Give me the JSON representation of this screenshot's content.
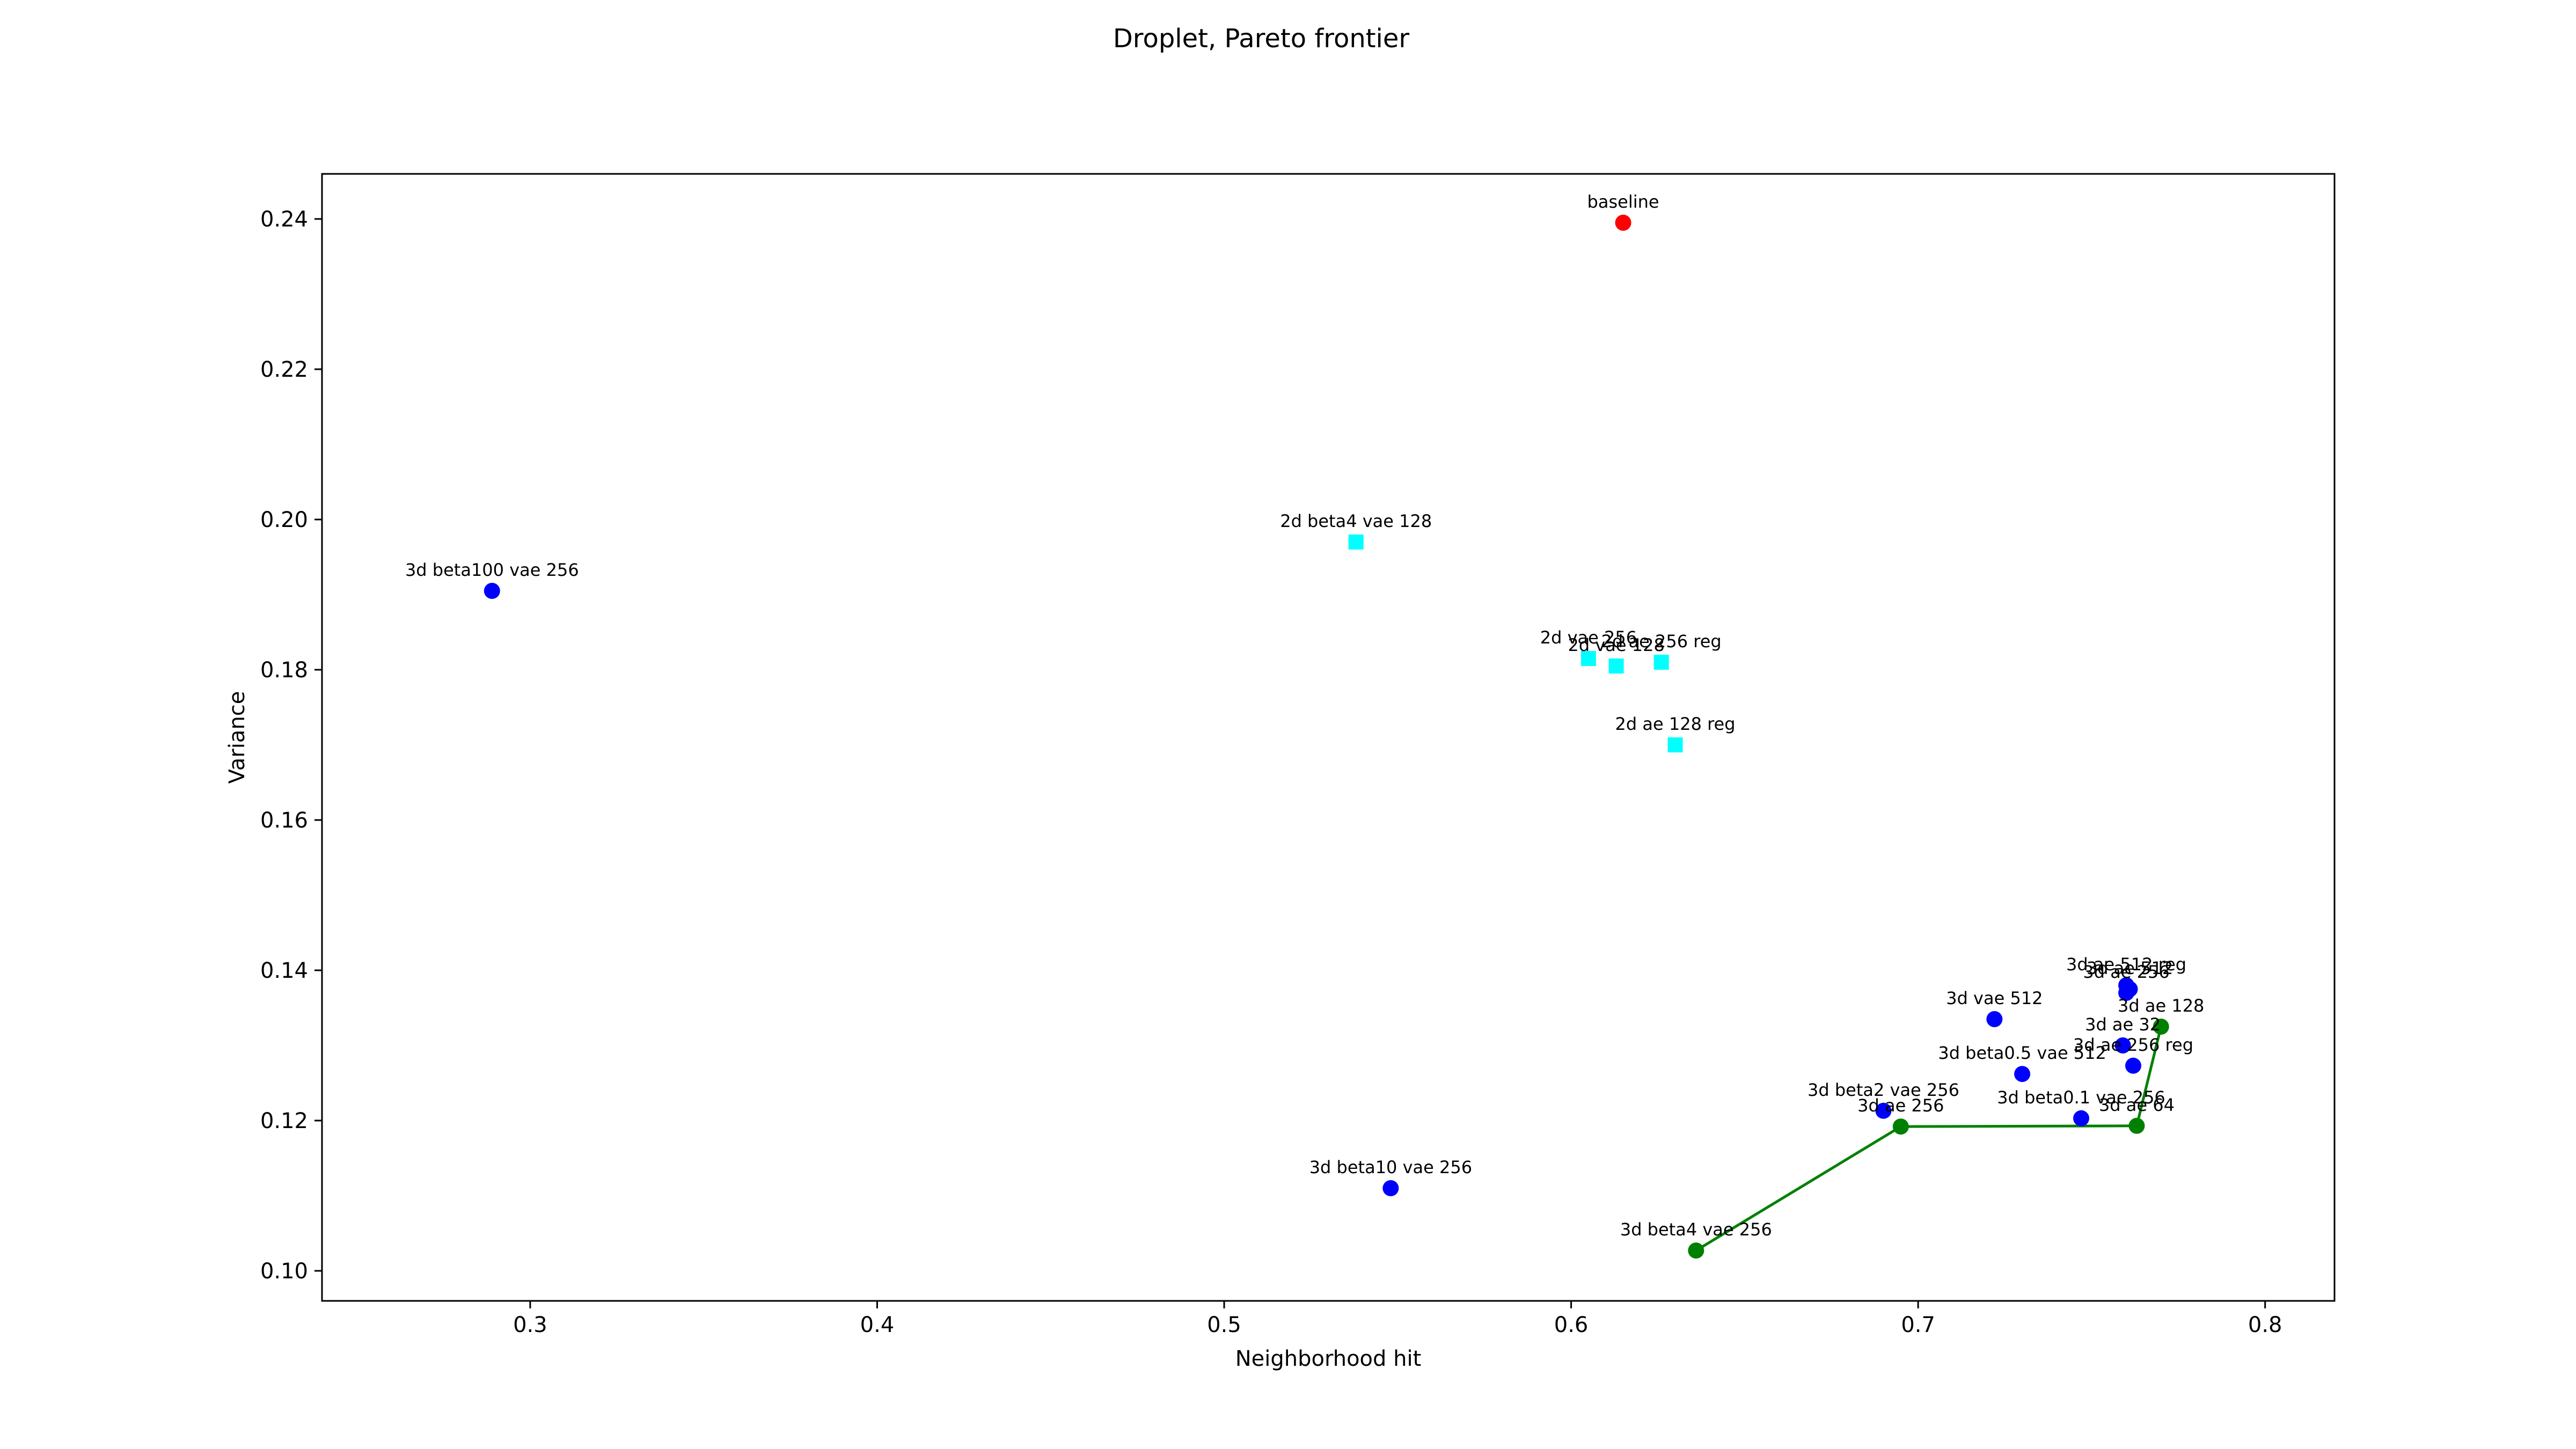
{
  "chart_data": {
    "type": "scatter",
    "title": "Droplet, Pareto frontier",
    "xlabel": "Neighborhood hit",
    "ylabel": "Variance",
    "xlim": [
      0.24,
      0.82
    ],
    "ylim": [
      0.096,
      0.246
    ],
    "x_ticks": [
      "0.3",
      "0.4",
      "0.5",
      "0.6",
      "0.7",
      "0.8"
    ],
    "y_ticks": [
      "0.10",
      "0.12",
      "0.14",
      "0.16",
      "0.18",
      "0.20",
      "0.22",
      "0.24"
    ],
    "grid": false,
    "colors": {
      "baseline": "#ff0000",
      "points_3d": "#0000ff",
      "points_2d": "#00ffff",
      "frontier": "#008000"
    },
    "series": [
      {
        "marker": "circle",
        "color": "#ff0000",
        "points": [
          {
            "label": "baseline",
            "x": 0.615,
            "y": 0.2395
          }
        ]
      },
      {
        "marker": "square",
        "color": "#00ffff",
        "points": [
          {
            "label": "2d beta4 vae 128",
            "x": 0.538,
            "y": 0.197
          },
          {
            "label": "2d vae 256",
            "x": 0.605,
            "y": 0.1815
          },
          {
            "label": "2d vae 128",
            "x": 0.613,
            "y": 0.1805
          },
          {
            "label": "2d ae 256 reg",
            "x": 0.626,
            "y": 0.181
          },
          {
            "label": "2d ae 128 reg",
            "x": 0.63,
            "y": 0.17
          }
        ]
      },
      {
        "marker": "circle",
        "color": "#0000ff",
        "points": [
          {
            "label": "3d beta100 vae 256",
            "x": 0.289,
            "y": 0.1905
          },
          {
            "label": "3d beta10 vae 256",
            "x": 0.548,
            "y": 0.111
          },
          {
            "label": "3d beta2 vae 256",
            "x": 0.69,
            "y": 0.1213
          },
          {
            "label": "3d vae 512",
            "x": 0.722,
            "y": 0.1335
          },
          {
            "label": "3d beta0.5 vae 512",
            "x": 0.73,
            "y": 0.1262
          },
          {
            "label": "3d beta0.1 vae 256",
            "x": 0.747,
            "y": 0.1203
          },
          {
            "label": "3d ae 32",
            "x": 0.759,
            "y": 0.13
          },
          {
            "label": "3d ae 256 reg",
            "x": 0.762,
            "y": 0.1273
          },
          {
            "label": "3d ae 512 reg",
            "x": 0.76,
            "y": 0.138
          },
          {
            "label": "3d ae 256",
            "x": 0.76,
            "y": 0.137
          },
          {
            "label": "3d ae 512",
            "x": 0.761,
            "y": 0.1375
          }
        ]
      },
      {
        "marker": "circle",
        "color": "#008000",
        "line": true,
        "points": [
          {
            "label": "3d beta4 vae 256",
            "x": 0.636,
            "y": 0.1027
          },
          {
            "label": "3d ae 256",
            "x": 0.695,
            "y": 0.1192
          },
          {
            "label": "3d ae 64",
            "x": 0.763,
            "y": 0.1193
          },
          {
            "label": "3d ae 128",
            "x": 0.77,
            "y": 0.1325
          }
        ]
      }
    ]
  }
}
